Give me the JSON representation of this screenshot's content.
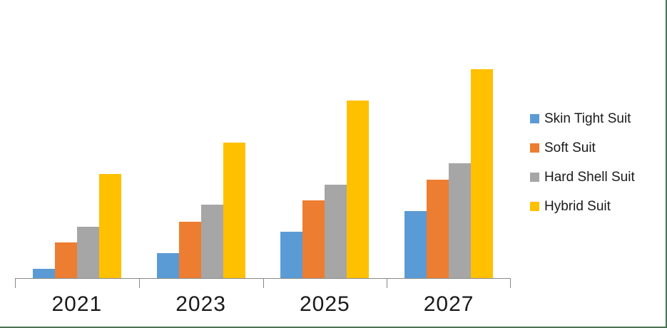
{
  "chart_data": {
    "type": "bar",
    "title": "",
    "xlabel": "",
    "ylabel": "",
    "categories": [
      "2021",
      "2023",
      "2025",
      "2027"
    ],
    "series": [
      {
        "name": "Skin Tight Suit",
        "color": "#5B9BD5",
        "values": [
          13,
          35,
          65,
          94
        ]
      },
      {
        "name": "Soft Suit",
        "color": "#ED7D31",
        "values": [
          50,
          79,
          109,
          138
        ]
      },
      {
        "name": "Hard Shell Suit",
        "color": "#A6A6A6",
        "values": [
          72,
          103,
          131,
          161
        ]
      },
      {
        "name": "Hybrid Suit",
        "color": "#FFC000",
        "values": [
          146,
          190,
          249,
          293
        ]
      }
    ],
    "value_units": "relative-estimated (no value axis shown in chart)",
    "ylim": [
      0,
      380
    ],
    "grid": false,
    "legend_position": "right",
    "axis_color": "#898989",
    "tick_marks": "outside, at category boundaries"
  },
  "frame": {
    "border_color": "#4B7355",
    "background": "#ffffff"
  }
}
